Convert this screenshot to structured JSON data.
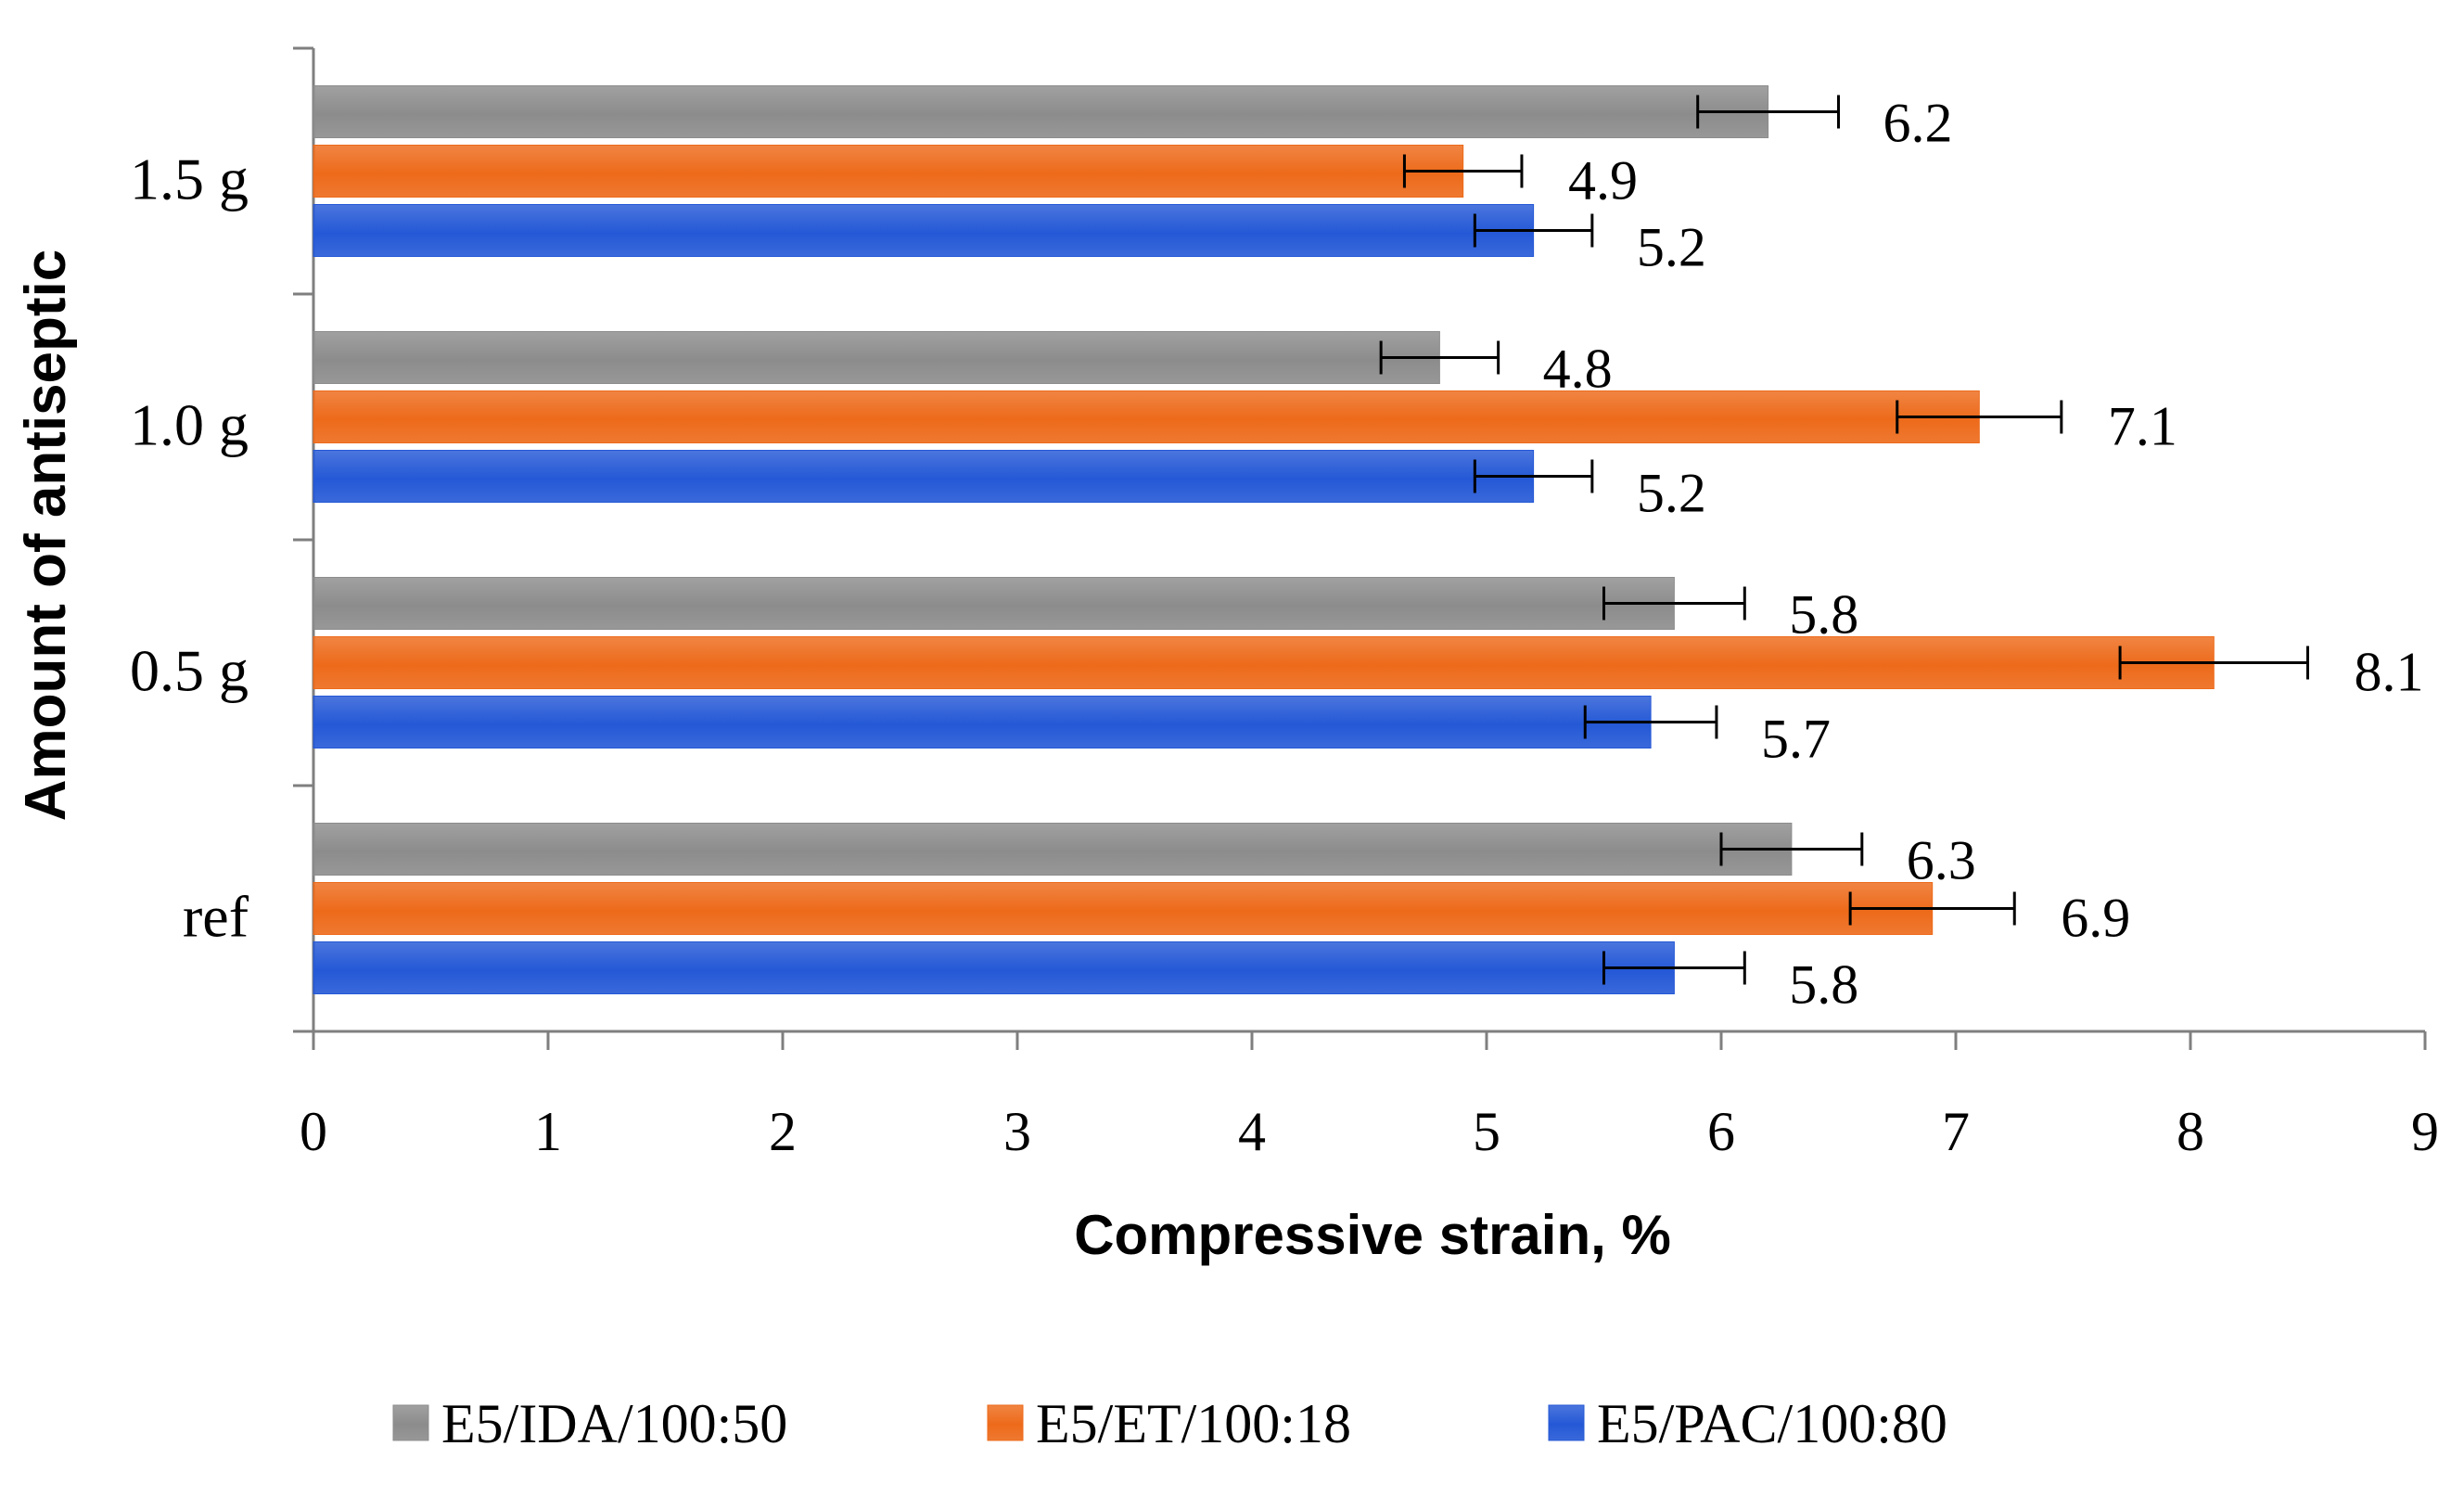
{
  "chart_data": {
    "type": "bar",
    "orientation": "horizontal",
    "title": "",
    "xlabel": "Compressive strain, %",
    "ylabel": "Amount of antiseptic",
    "xlim": [
      0,
      9
    ],
    "xticks": [
      "0",
      "1",
      "2",
      "3",
      "4",
      "5",
      "6",
      "7",
      "8",
      "9"
    ],
    "categories": [
      "1.5 g",
      "1.0 g",
      "0.5 g",
      "ref"
    ],
    "series": [
      {
        "name": "E5/IDA/100:50",
        "color": "#8c8c8c",
        "values": [
          6.2,
          4.8,
          5.8,
          6.3
        ],
        "labels": [
          "6.2",
          "4.8",
          "5.8",
          "6.3"
        ],
        "errors": [
          0.3,
          0.25,
          0.3,
          0.3
        ]
      },
      {
        "name": "E5/ET/100:18",
        "color": "#ed6a1a",
        "values": [
          4.9,
          7.1,
          8.1,
          6.9
        ],
        "labels": [
          "4.9",
          "7.1",
          "8.1",
          "6.9"
        ],
        "errors": [
          0.25,
          0.35,
          0.4,
          0.35
        ]
      },
      {
        "name": "E5/PAC/100:80",
        "color": "#2458d6",
        "values": [
          5.2,
          5.2,
          5.7,
          5.8
        ],
        "labels": [
          "5.2",
          "5.2",
          "5.7",
          "5.8"
        ],
        "errors": [
          0.25,
          0.25,
          0.28,
          0.3
        ]
      }
    ],
    "legend_position": "bottom",
    "grid": false
  }
}
